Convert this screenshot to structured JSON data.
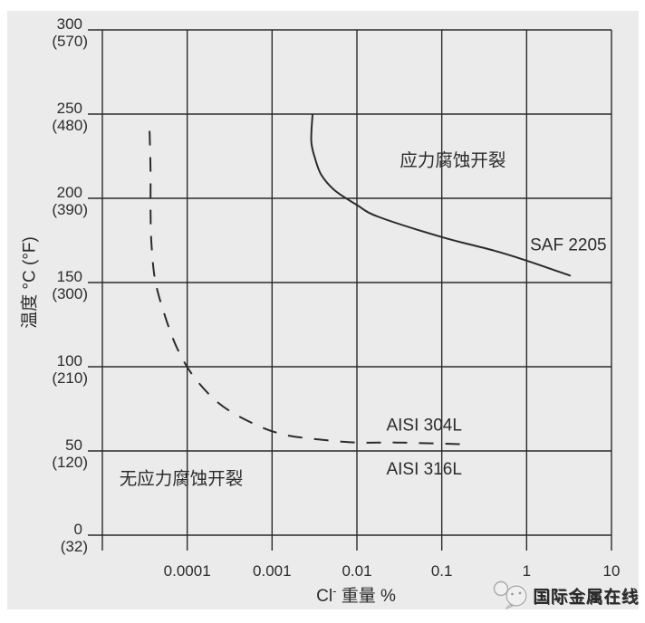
{
  "chart_data": {
    "type": "line",
    "title": "",
    "x_axis": {
      "title_base": "Cl",
      "title_sup": "-",
      "title_rest": " 重量 %",
      "scale": "log",
      "min": 1e-05,
      "max": 10,
      "grid_values": [
        1e-05,
        0.0001,
        0.001,
        0.01,
        0.1,
        1,
        10
      ],
      "ticks": [
        {
          "value": 0.0001,
          "label": "0.0001"
        },
        {
          "value": 0.001,
          "label": "0.001"
        },
        {
          "value": 0.01,
          "label": "0.01"
        },
        {
          "value": 0.1,
          "label": "0.1"
        },
        {
          "value": 1,
          "label": "1"
        },
        {
          "value": 10,
          "label": "10"
        }
      ]
    },
    "y_axis": {
      "title": "温度 °C (°F)",
      "min": 0,
      "max": 300,
      "ticks": [
        {
          "value": 300,
          "label": "300",
          "f_label": "(570)"
        },
        {
          "value": 250,
          "label": "250",
          "f_label": "(480)"
        },
        {
          "value": 200,
          "label": "200",
          "f_label": "(390)"
        },
        {
          "value": 150,
          "label": "150",
          "f_label": "(300)"
        },
        {
          "value": 100,
          "label": "100",
          "f_label": "(210)"
        },
        {
          "value": 50,
          "label": "50",
          "f_label": "(120)"
        },
        {
          "value": 0,
          "label": "0",
          "f_label": "(32)"
        }
      ]
    },
    "series": [
      {
        "name": "SAF 2205",
        "style": "solid",
        "points": [
          [
            0.003,
            250
          ],
          [
            0.0029,
            234
          ],
          [
            0.0032,
            224
          ],
          [
            0.0038,
            214
          ],
          [
            0.0054,
            205
          ],
          [
            0.01,
            196
          ],
          [
            0.018,
            189
          ],
          [
            0.1,
            177
          ],
          [
            0.41,
            169
          ],
          [
            1.0,
            163
          ],
          [
            3.3,
            154
          ]
        ]
      },
      {
        "name": "AISI 304L / AISI 316L",
        "style": "dashed",
        "points": [
          [
            3.6e-05,
            240
          ],
          [
            3.7e-05,
            216
          ],
          [
            3.7e-05,
            192
          ],
          [
            3.8e-05,
            172
          ],
          [
            4.2e-05,
            151
          ],
          [
            5.4e-05,
            131
          ],
          [
            7.6e-05,
            111
          ],
          [
            0.00012,
            94
          ],
          [
            0.00024,
            78
          ],
          [
            0.00056,
            67
          ],
          [
            0.0013,
            60
          ],
          [
            0.0033,
            57
          ],
          [
            0.01,
            55
          ],
          [
            0.03,
            55
          ],
          [
            0.18,
            54
          ]
        ]
      }
    ],
    "labels": [
      {
        "text": "应力腐蚀开裂",
        "c": 0.135,
        "t": 219
      },
      {
        "text": "SAF 2205",
        "c": 3.1,
        "t": 169
      },
      {
        "text": "AISI 304L",
        "c": 0.062,
        "t": 62
      },
      {
        "text": "AISI 316L",
        "c": 0.062,
        "t": 36
      },
      {
        "text": "无应力腐蚀开裂",
        "c": 8.5e-05,
        "t": 30
      }
    ],
    "colors": {
      "line": "#2b2b2b",
      "text": "#2b2b2b",
      "panel_bg": "#ebebeb",
      "watermark": "#9c9c9c"
    }
  },
  "watermark": {
    "text": "国际金属在线",
    "icon": "wechat-chat-bubbles"
  }
}
